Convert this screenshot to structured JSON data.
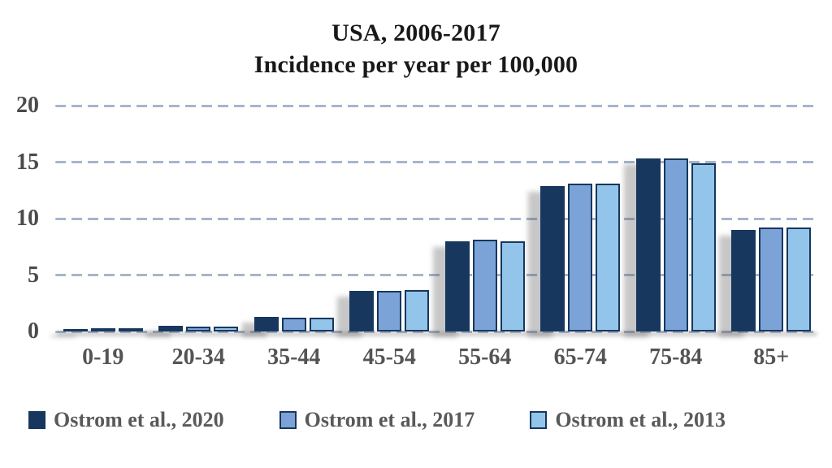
{
  "title": {
    "line1": "USA, 2006-2017",
    "line2": "Incidence per year per 100,000"
  },
  "chart_data": {
    "type": "bar",
    "title": "USA, 2006-2017",
    "subtitle": "Incidence per year per 100,000",
    "categories": [
      "0-19",
      "20-34",
      "35-44",
      "45-54",
      "55-64",
      "65-74",
      "75-84",
      "85+"
    ],
    "series": [
      {
        "name": "Ostrom et al., 2020",
        "color": "#17375E",
        "values": [
          0.2,
          0.5,
          1.3,
          3.6,
          8.0,
          12.9,
          15.3,
          9.0
        ]
      },
      {
        "name": "Ostrom et al., 2017",
        "color": "#7BA3D8",
        "values": [
          0.15,
          0.4,
          1.2,
          3.6,
          8.1,
          13.1,
          15.3,
          9.2
        ]
      },
      {
        "name": "Ostrom et al., 2013",
        "color": "#92C5E9",
        "values": [
          0.15,
          0.4,
          1.2,
          3.7,
          8.0,
          13.1,
          14.9,
          9.2
        ]
      }
    ],
    "xlabel": "",
    "ylabel": "",
    "ylim": [
      0,
      20
    ],
    "yticks": [
      0,
      5,
      10,
      15,
      20
    ],
    "grid": "horizontal-dashed",
    "gridline_color": "#A6B5CB",
    "bar_border_color": "#17375E",
    "legend_position": "bottom",
    "axis_tick_color": "#4A4A4A",
    "legend_text_color": "#595959"
  }
}
